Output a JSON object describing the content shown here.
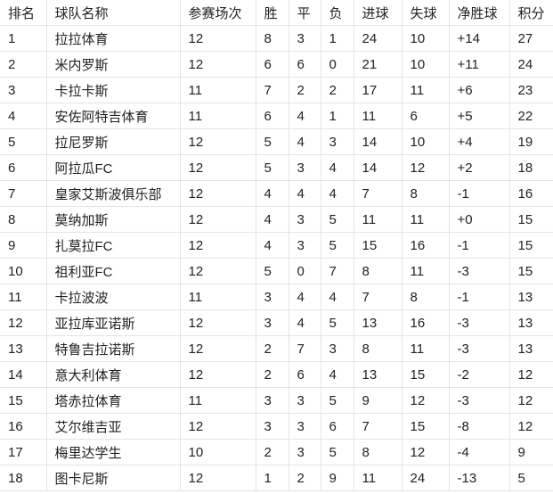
{
  "table": {
    "headers": [
      "排名",
      "球队名称",
      "参赛场次",
      "胜",
      "平",
      "负",
      "进球",
      "失球",
      "净胜球",
      "积分"
    ],
    "rows": [
      [
        "1",
        "拉拉体育",
        "12",
        "8",
        "3",
        "1",
        "24",
        "10",
        "+14",
        "27"
      ],
      [
        "2",
        "米内罗斯",
        "12",
        "6",
        "6",
        "0",
        "21",
        "10",
        "+11",
        "24"
      ],
      [
        "3",
        "卡拉卡斯",
        "11",
        "7",
        "2",
        "2",
        "17",
        "11",
        "+6",
        "23"
      ],
      [
        "4",
        "安佐阿特吉体育",
        "11",
        "6",
        "4",
        "1",
        "11",
        "6",
        "+5",
        "22"
      ],
      [
        "5",
        "拉尼罗斯",
        "12",
        "5",
        "4",
        "3",
        "14",
        "10",
        "+4",
        "19"
      ],
      [
        "6",
        "阿拉瓜FC",
        "12",
        "5",
        "3",
        "4",
        "14",
        "12",
        "+2",
        "18"
      ],
      [
        "7",
        "皇家艾斯波俱乐部",
        "12",
        "4",
        "4",
        "4",
        "7",
        "8",
        "-1",
        "16"
      ],
      [
        "8",
        "莫纳加斯",
        "12",
        "4",
        "3",
        "5",
        "11",
        "11",
        "+0",
        "15"
      ],
      [
        "9",
        "扎莫拉FC",
        "12",
        "4",
        "3",
        "5",
        "15",
        "16",
        "-1",
        "15"
      ],
      [
        "10",
        "祖利亚FC",
        "12",
        "5",
        "0",
        "7",
        "8",
        "11",
        "-3",
        "15"
      ],
      [
        "11",
        "卡拉波波",
        "11",
        "3",
        "4",
        "4",
        "7",
        "8",
        "-1",
        "13"
      ],
      [
        "12",
        "亚拉库亚诺斯",
        "12",
        "3",
        "4",
        "5",
        "13",
        "16",
        "-3",
        "13"
      ],
      [
        "13",
        "特鲁吉拉诺斯",
        "12",
        "2",
        "7",
        "3",
        "8",
        "11",
        "-3",
        "13"
      ],
      [
        "14",
        "意大利体育",
        "12",
        "2",
        "6",
        "4",
        "13",
        "15",
        "-2",
        "12"
      ],
      [
        "15",
        "塔赤拉体育",
        "11",
        "3",
        "3",
        "5",
        "9",
        "12",
        "-3",
        "12"
      ],
      [
        "16",
        "艾尔维吉亚",
        "12",
        "3",
        "3",
        "6",
        "7",
        "15",
        "-8",
        "12"
      ],
      [
        "17",
        "梅里达学生",
        "10",
        "2",
        "3",
        "5",
        "8",
        "12",
        "-4",
        "9"
      ],
      [
        "18",
        "图卡尼斯",
        "12",
        "1",
        "2",
        "9",
        "11",
        "24",
        "-13",
        "5"
      ]
    ]
  }
}
